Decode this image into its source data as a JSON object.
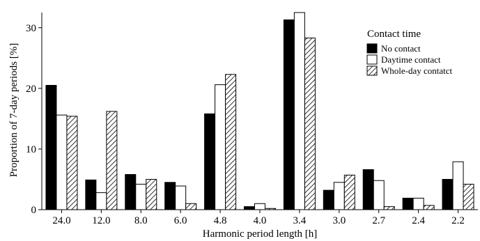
{
  "chart_data": {
    "type": "bar",
    "xlabel": "Harmonic period length [h]",
    "ylabel": "Proportion of 7-day periods [%]",
    "ylim": [
      0,
      32.5
    ],
    "yticks": [
      0,
      10,
      20,
      30
    ],
    "categories": [
      "24.0",
      "12.0",
      "8.0",
      "6.0",
      "4.8",
      "4.0",
      "3.4",
      "3.0",
      "2.7",
      "2.4",
      "2.2"
    ],
    "legend": {
      "title": "Contact time",
      "placement": "top-right"
    },
    "series": [
      {
        "name": "No contact",
        "fill": "solid-black",
        "values": [
          20.5,
          4.9,
          5.8,
          4.5,
          15.8,
          0.5,
          31.3,
          3.2,
          6.6,
          1.9,
          5.0
        ]
      },
      {
        "name": "Daytime contact",
        "fill": "white",
        "values": [
          15.6,
          2.8,
          4.2,
          3.9,
          20.6,
          1.0,
          32.5,
          4.5,
          4.8,
          1.9,
          7.9
        ]
      },
      {
        "name": "Whole-day contatct",
        "fill": "hatched",
        "values": [
          15.4,
          16.2,
          5.0,
          1.0,
          22.3,
          0.2,
          28.3,
          5.7,
          0.5,
          0.7,
          4.2
        ]
      }
    ],
    "grid": false
  }
}
